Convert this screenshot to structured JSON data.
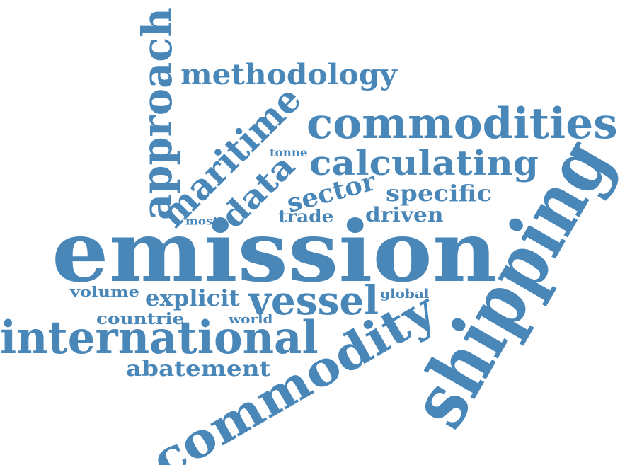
{
  "cloud": {
    "color": "#4a87b9",
    "words": [
      {
        "key": "emission",
        "text": "emission",
        "angle": 0
      },
      {
        "key": "shipping",
        "text": "shipping",
        "angle": -60
      },
      {
        "key": "commodity",
        "text": "commodity",
        "angle": -30
      },
      {
        "key": "international",
        "text": "international",
        "angle": 0
      },
      {
        "key": "commodities",
        "text": "commodities",
        "angle": 0
      },
      {
        "key": "approach",
        "text": "approach",
        "angle": -90
      },
      {
        "key": "maritime",
        "text": "maritime",
        "angle": -45
      },
      {
        "key": "calculating",
        "text": "calculating",
        "angle": 0
      },
      {
        "key": "methodology",
        "text": "methodology",
        "angle": 0
      },
      {
        "key": "vessel",
        "text": "vessel",
        "angle": 0
      },
      {
        "key": "data",
        "text": "data",
        "angle": -45
      },
      {
        "key": "sector",
        "text": "sector",
        "angle": -15
      },
      {
        "key": "specific",
        "text": "specific",
        "angle": 0
      },
      {
        "key": "explicit",
        "text": "explicit",
        "angle": 0
      },
      {
        "key": "abatement",
        "text": "abatement",
        "angle": 0
      },
      {
        "key": "driven",
        "text": "driven",
        "angle": 0
      },
      {
        "key": "trade",
        "text": "trade",
        "angle": 0
      },
      {
        "key": "countrie",
        "text": "countrie",
        "angle": 0
      },
      {
        "key": "volume",
        "text": "volume",
        "angle": 0
      },
      {
        "key": "global",
        "text": "global",
        "angle": 0
      },
      {
        "key": "world",
        "text": "world",
        "angle": 0
      },
      {
        "key": "tonne",
        "text": "tonne",
        "angle": 0
      },
      {
        "key": "most",
        "text": "most",
        "angle": 0
      }
    ]
  }
}
